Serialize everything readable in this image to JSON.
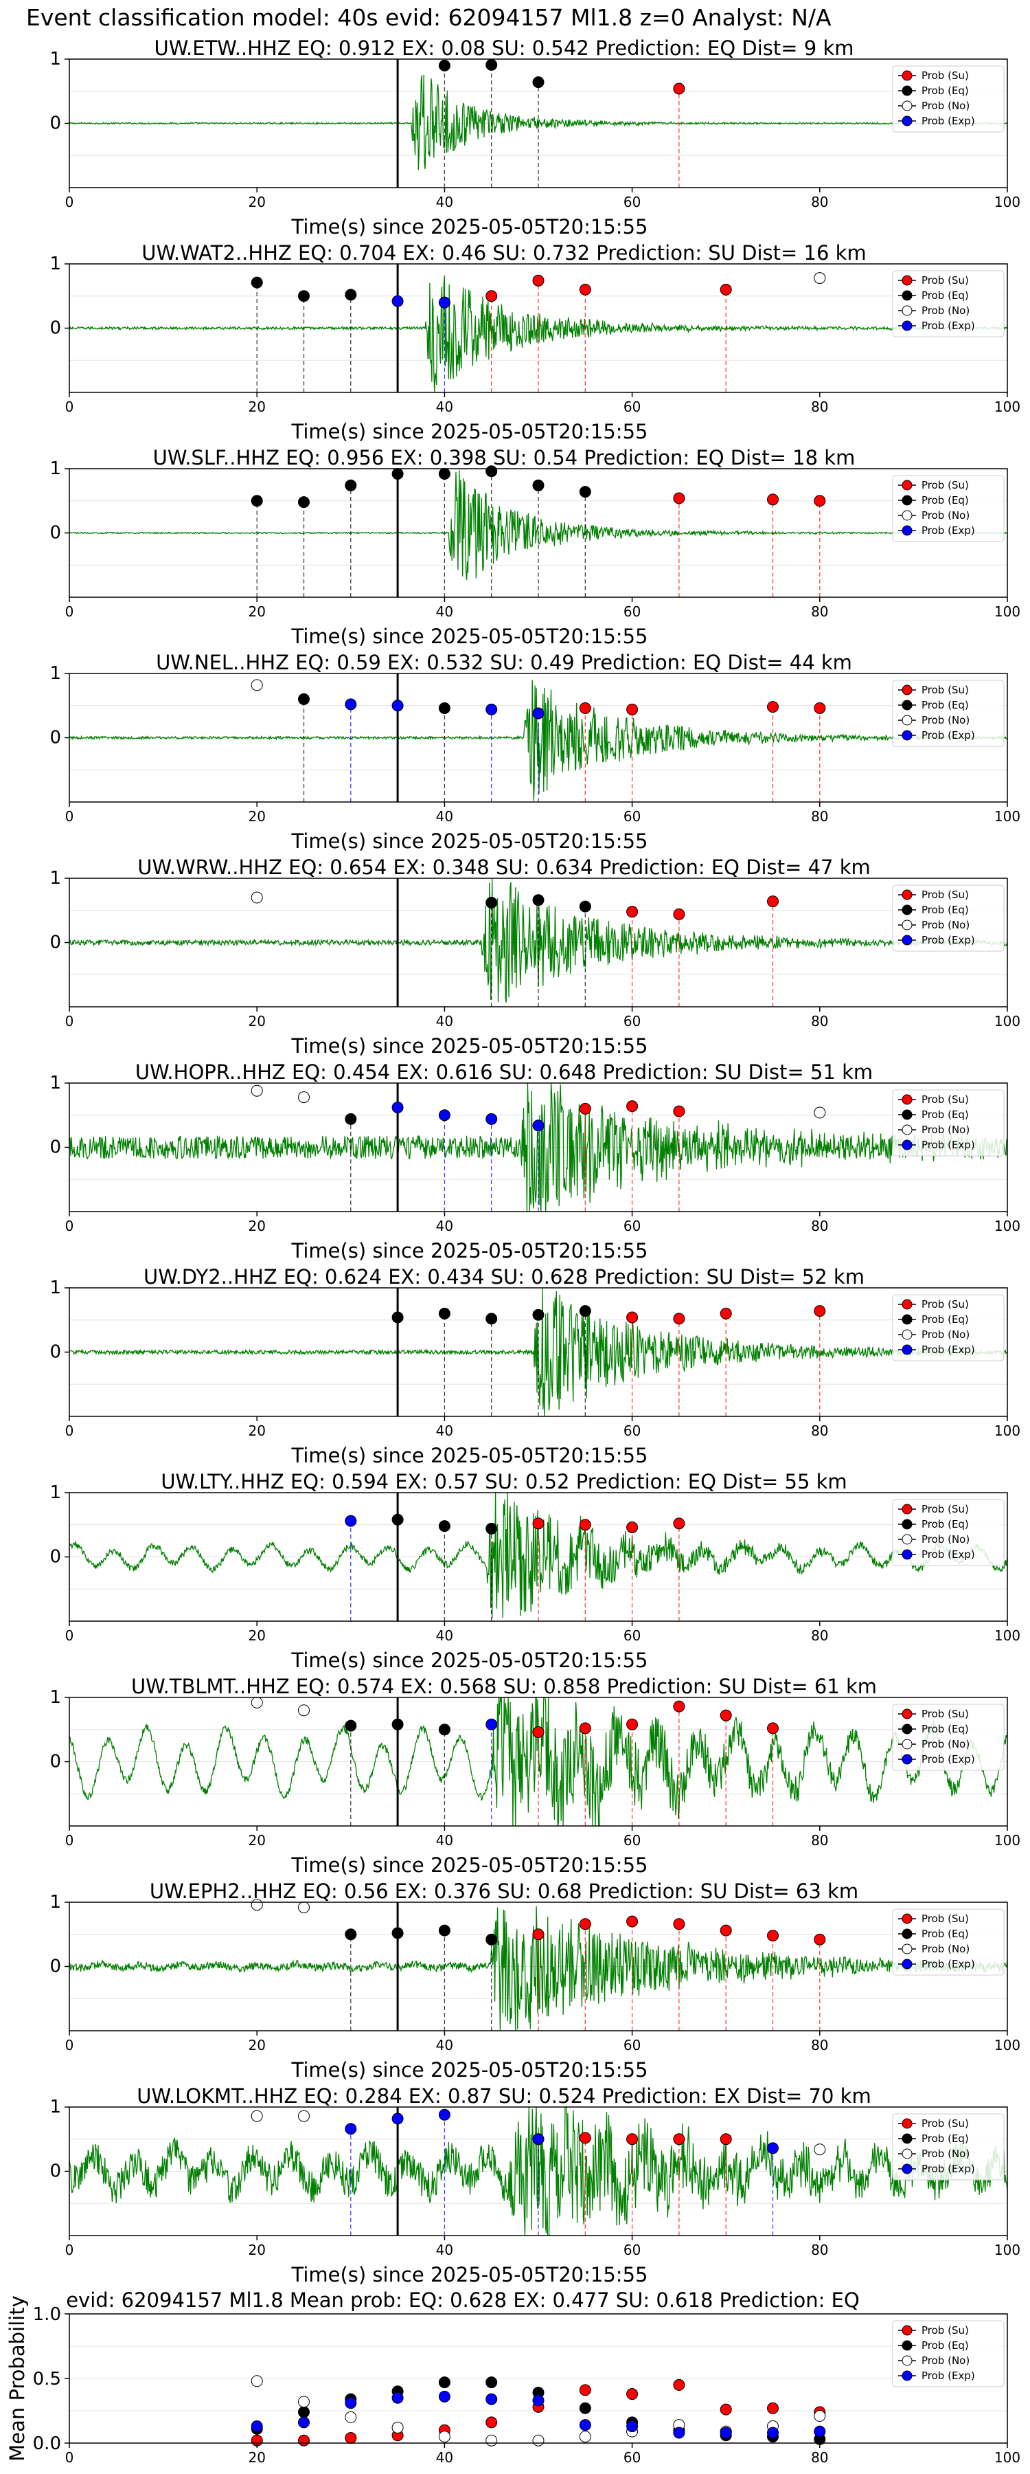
{
  "figure": {
    "suptitle": "Event classification model: 40s evid: 62094157 Ml1.8 z=0 Analyst: N/A"
  },
  "legend_labels": [
    "Prob (Su)",
    "Prob (Eq)",
    "Prob (No)",
    "Prob (Exp)"
  ],
  "colors": {
    "su": "#ff0000",
    "eq": "#000000",
    "no": "#ffffff",
    "exp": "#0000ff",
    "waveform": "#008000",
    "origin_line": "#000000"
  },
  "chart_data": [
    {
      "type": "scatter",
      "title": "UW.ETW..HHZ   EQ: 0.912  EX: 0.08  SU: 0.542   Prediction: EQ    Dist= 9 km",
      "xlabel": "Time(s) since 2025-05-05T20:15:55",
      "xlim": [
        0,
        100
      ],
      "ylim": [
        -1,
        1
      ],
      "xticks": [
        "0",
        "20",
        "40",
        "60",
        "80",
        "100"
      ],
      "yticks": [
        "1",
        "0"
      ],
      "origin_time": 35,
      "waveform": {
        "onset": 36.5,
        "amp": 0.9,
        "decay": 4,
        "coda": 10,
        "noise": 0.012,
        "swell": 0
      },
      "points": [
        {
          "class": "eq",
          "x": 40,
          "y": 0.9
        },
        {
          "class": "eq",
          "x": 45,
          "y": 0.91
        },
        {
          "class": "eq",
          "x": 50,
          "y": 0.64
        },
        {
          "class": "su",
          "x": 65,
          "y": 0.54
        }
      ]
    },
    {
      "type": "scatter",
      "title": "UW.WAT2..HHZ   EQ: 0.704  EX: 0.46  SU: 0.732   Prediction: SU    Dist= 16 km",
      "xlabel": "Time(s) since 2025-05-05T20:15:55",
      "xlim": [
        0,
        100
      ],
      "ylim": [
        -1,
        1
      ],
      "xticks": [
        "0",
        "20",
        "40",
        "60",
        "80",
        "100"
      ],
      "yticks": [
        "1",
        "0"
      ],
      "origin_time": 35,
      "waveform": {
        "onset": 38,
        "amp": 1.0,
        "decay": 6,
        "coda": 14,
        "noise": 0.02,
        "swell": 0
      },
      "points": [
        {
          "class": "eq",
          "x": 20,
          "y": 0.71
        },
        {
          "class": "eq",
          "x": 25,
          "y": 0.5
        },
        {
          "class": "eq",
          "x": 30,
          "y": 0.52
        },
        {
          "class": "exp",
          "x": 35,
          "y": 0.42
        },
        {
          "class": "exp",
          "x": 40,
          "y": 0.4
        },
        {
          "class": "su",
          "x": 45,
          "y": 0.5
        },
        {
          "class": "su",
          "x": 50,
          "y": 0.74
        },
        {
          "class": "su",
          "x": 55,
          "y": 0.6
        },
        {
          "class": "su",
          "x": 70,
          "y": 0.6
        },
        {
          "class": "no",
          "x": 80,
          "y": 0.78
        }
      ]
    },
    {
      "type": "scatter",
      "title": "UW.SLF..HHZ   EQ: 0.956  EX: 0.398  SU: 0.54   Prediction: EQ    Dist= 18 km",
      "xlabel": "Time(s) since 2025-05-05T20:15:55",
      "xlim": [
        0,
        100
      ],
      "ylim": [
        -1,
        1
      ],
      "xticks": [
        "0",
        "20",
        "40",
        "60",
        "80",
        "100"
      ],
      "yticks": [
        "1",
        "0"
      ],
      "origin_time": 35,
      "waveform": {
        "onset": 40.5,
        "amp": 1.0,
        "decay": 5,
        "coda": 12,
        "noise": 0.01,
        "swell": 0
      },
      "points": [
        {
          "class": "eq",
          "x": 20,
          "y": 0.5
        },
        {
          "class": "eq",
          "x": 25,
          "y": 0.48
        },
        {
          "class": "eq",
          "x": 30,
          "y": 0.74
        },
        {
          "class": "eq",
          "x": 35,
          "y": 0.92
        },
        {
          "class": "eq",
          "x": 40,
          "y": 0.92
        },
        {
          "class": "eq",
          "x": 45,
          "y": 0.96
        },
        {
          "class": "eq",
          "x": 50,
          "y": 0.74
        },
        {
          "class": "eq",
          "x": 55,
          "y": 0.64
        },
        {
          "class": "su",
          "x": 65,
          "y": 0.54
        },
        {
          "class": "su",
          "x": 75,
          "y": 0.52
        },
        {
          "class": "su",
          "x": 80,
          "y": 0.5
        }
      ]
    },
    {
      "type": "scatter",
      "title": "UW.NEL..HHZ   EQ: 0.59  EX: 0.532  SU: 0.49   Prediction: EQ    Dist= 44 km",
      "xlabel": "Time(s) since 2025-05-05T20:15:55",
      "xlim": [
        0,
        100
      ],
      "ylim": [
        -1,
        1
      ],
      "xticks": [
        "0",
        "20",
        "40",
        "60",
        "80",
        "100"
      ],
      "yticks": [
        "1",
        "0"
      ],
      "origin_time": 35,
      "waveform": {
        "onset": 48.5,
        "amp": 0.9,
        "decay": 8,
        "coda": 16,
        "noise": 0.02,
        "swell": 0
      },
      "points": [
        {
          "class": "no",
          "x": 20,
          "y": 0.82
        },
        {
          "class": "eq",
          "x": 25,
          "y": 0.6
        },
        {
          "class": "exp",
          "x": 30,
          "y": 0.52
        },
        {
          "class": "exp",
          "x": 35,
          "y": 0.5
        },
        {
          "class": "eq",
          "x": 40,
          "y": 0.46
        },
        {
          "class": "exp",
          "x": 45,
          "y": 0.44
        },
        {
          "class": "exp",
          "x": 50,
          "y": 0.38
        },
        {
          "class": "su",
          "x": 55,
          "y": 0.46
        },
        {
          "class": "su",
          "x": 60,
          "y": 0.44
        },
        {
          "class": "su",
          "x": 75,
          "y": 0.48
        },
        {
          "class": "su",
          "x": 80,
          "y": 0.46
        }
      ]
    },
    {
      "type": "scatter",
      "title": "UW.WRW..HHZ   EQ: 0.654  EX: 0.348  SU: 0.634   Prediction: EQ    Dist= 47 km",
      "xlabel": "Time(s) since 2025-05-05T20:15:55",
      "xlim": [
        0,
        100
      ],
      "ylim": [
        -1,
        1
      ],
      "xticks": [
        "0",
        "20",
        "40",
        "60",
        "80",
        "100"
      ],
      "yticks": [
        "1",
        "0"
      ],
      "origin_time": 35,
      "waveform": {
        "onset": 44,
        "amp": 1.0,
        "decay": 9,
        "coda": 18,
        "noise": 0.04,
        "swell": 0
      },
      "points": [
        {
          "class": "no",
          "x": 20,
          "y": 0.7
        },
        {
          "class": "eq",
          "x": 45,
          "y": 0.62
        },
        {
          "class": "eq",
          "x": 50,
          "y": 0.66
        },
        {
          "class": "eq",
          "x": 55,
          "y": 0.56
        },
        {
          "class": "su",
          "x": 60,
          "y": 0.48
        },
        {
          "class": "su",
          "x": 65,
          "y": 0.44
        },
        {
          "class": "su",
          "x": 75,
          "y": 0.64
        }
      ]
    },
    {
      "type": "scatter",
      "title": "UW.HOPR..HHZ   EQ: 0.454  EX: 0.616  SU: 0.648   Prediction: SU    Dist= 51 km",
      "xlabel": "Time(s) since 2025-05-05T20:15:55",
      "xlim": [
        0,
        100
      ],
      "ylim": [
        -1,
        1
      ],
      "xticks": [
        "0",
        "20",
        "40",
        "60",
        "80",
        "100"
      ],
      "yticks": [
        "1",
        "0"
      ],
      "origin_time": 35,
      "waveform": {
        "onset": 48,
        "amp": 1.0,
        "decay": 12,
        "coda": 20,
        "noise": 0.18,
        "swell": 0
      },
      "points": [
        {
          "class": "no",
          "x": 20,
          "y": 0.88
        },
        {
          "class": "no",
          "x": 25,
          "y": 0.78
        },
        {
          "class": "eq",
          "x": 30,
          "y": 0.44
        },
        {
          "class": "exp",
          "x": 35,
          "y": 0.62
        },
        {
          "class": "exp",
          "x": 40,
          "y": 0.5
        },
        {
          "class": "exp",
          "x": 45,
          "y": 0.44
        },
        {
          "class": "exp",
          "x": 50,
          "y": 0.34
        },
        {
          "class": "su",
          "x": 55,
          "y": 0.6
        },
        {
          "class": "su",
          "x": 60,
          "y": 0.64
        },
        {
          "class": "su",
          "x": 65,
          "y": 0.56
        },
        {
          "class": "no",
          "x": 80,
          "y": 0.54
        }
      ]
    },
    {
      "type": "scatter",
      "title": "UW.DY2..HHZ   EQ: 0.624  EX: 0.434  SU: 0.628   Prediction: SU    Dist= 52 km",
      "xlabel": "Time(s) since 2025-05-05T20:15:55",
      "xlim": [
        0,
        100
      ],
      "ylim": [
        -1,
        1
      ],
      "xticks": [
        "0",
        "20",
        "40",
        "60",
        "80",
        "100"
      ],
      "yticks": [
        "1",
        "0"
      ],
      "origin_time": 35,
      "waveform": {
        "onset": 49.5,
        "amp": 0.95,
        "decay": 10,
        "coda": 18,
        "noise": 0.03,
        "swell": 0
      },
      "points": [
        {
          "class": "eq",
          "x": 35,
          "y": 0.54
        },
        {
          "class": "eq",
          "x": 40,
          "y": 0.6
        },
        {
          "class": "eq",
          "x": 45,
          "y": 0.52
        },
        {
          "class": "eq",
          "x": 50,
          "y": 0.58
        },
        {
          "class": "eq",
          "x": 55,
          "y": 0.64
        },
        {
          "class": "su",
          "x": 60,
          "y": 0.54
        },
        {
          "class": "su",
          "x": 65,
          "y": 0.52
        },
        {
          "class": "su",
          "x": 70,
          "y": 0.6
        },
        {
          "class": "su",
          "x": 80,
          "y": 0.64
        }
      ]
    },
    {
      "type": "scatter",
      "title": "UW.LTY..HHZ   EQ: 0.594  EX: 0.57  SU: 0.52   Prediction: EQ    Dist= 55 km",
      "xlabel": "Time(s) since 2025-05-05T20:15:55",
      "xlim": [
        0,
        100
      ],
      "ylim": [
        -1,
        1
      ],
      "xticks": [
        "0",
        "20",
        "40",
        "60",
        "80",
        "100"
      ],
      "yticks": [
        "1",
        "0"
      ],
      "origin_time": 35,
      "waveform": {
        "onset": 44.5,
        "amp": 1.0,
        "decay": 9,
        "coda": 18,
        "noise": 0.05,
        "swell": 0.18
      },
      "points": [
        {
          "class": "exp",
          "x": 30,
          "y": 0.56
        },
        {
          "class": "eq",
          "x": 35,
          "y": 0.58
        },
        {
          "class": "eq",
          "x": 40,
          "y": 0.48
        },
        {
          "class": "eq",
          "x": 45,
          "y": 0.44
        },
        {
          "class": "su",
          "x": 50,
          "y": 0.52
        },
        {
          "class": "su",
          "x": 55,
          "y": 0.5
        },
        {
          "class": "su",
          "x": 60,
          "y": 0.46
        },
        {
          "class": "su",
          "x": 65,
          "y": 0.52
        }
      ]
    },
    {
      "type": "scatter",
      "title": "UW.TBLMT..HHZ   EQ: 0.574  EX: 0.568  SU: 0.858   Prediction: SU    Dist= 61 km",
      "xlabel": "Time(s) since 2025-05-05T20:15:55",
      "xlim": [
        0,
        100
      ],
      "ylim": [
        -1,
        1
      ],
      "xticks": [
        "0",
        "20",
        "40",
        "60",
        "80",
        "100"
      ],
      "yticks": [
        "1",
        "0"
      ],
      "origin_time": 35,
      "waveform": {
        "onset": 45,
        "amp": 1.0,
        "decay": 16,
        "coda": 22,
        "noise": 0.06,
        "swell": 0.5
      },
      "points": [
        {
          "class": "no",
          "x": 20,
          "y": 0.92
        },
        {
          "class": "no",
          "x": 25,
          "y": 0.8
        },
        {
          "class": "eq",
          "x": 30,
          "y": 0.56
        },
        {
          "class": "eq",
          "x": 35,
          "y": 0.58
        },
        {
          "class": "eq",
          "x": 40,
          "y": 0.5
        },
        {
          "class": "exp",
          "x": 45,
          "y": 0.58
        },
        {
          "class": "su",
          "x": 50,
          "y": 0.46
        },
        {
          "class": "su",
          "x": 55,
          "y": 0.52
        },
        {
          "class": "su",
          "x": 60,
          "y": 0.58
        },
        {
          "class": "su",
          "x": 65,
          "y": 0.86
        },
        {
          "class": "su",
          "x": 70,
          "y": 0.72
        },
        {
          "class": "su",
          "x": 75,
          "y": 0.52
        }
      ]
    },
    {
      "type": "scatter",
      "title": "UW.EPH2..HHZ   EQ: 0.56  EX: 0.376  SU: 0.68   Prediction: SU    Dist= 63 km",
      "xlabel": "Time(s) since 2025-05-05T20:15:55",
      "xlim": [
        0,
        100
      ],
      "ylim": [
        -1,
        1
      ],
      "xticks": [
        "0",
        "20",
        "40",
        "60",
        "80",
        "100"
      ],
      "yticks": [
        "1",
        "0"
      ],
      "origin_time": 35,
      "waveform": {
        "onset": 45,
        "amp": 1.0,
        "decay": 14,
        "coda": 22,
        "noise": 0.06,
        "swell": 0.03
      },
      "points": [
        {
          "class": "no",
          "x": 20,
          "y": 0.96
        },
        {
          "class": "no",
          "x": 25,
          "y": 0.92
        },
        {
          "class": "eq",
          "x": 30,
          "y": 0.5
        },
        {
          "class": "eq",
          "x": 35,
          "y": 0.52
        },
        {
          "class": "eq",
          "x": 40,
          "y": 0.56
        },
        {
          "class": "eq",
          "x": 45,
          "y": 0.42
        },
        {
          "class": "su",
          "x": 50,
          "y": 0.5
        },
        {
          "class": "su",
          "x": 55,
          "y": 0.66
        },
        {
          "class": "su",
          "x": 60,
          "y": 0.7
        },
        {
          "class": "su",
          "x": 65,
          "y": 0.66
        },
        {
          "class": "su",
          "x": 70,
          "y": 0.56
        },
        {
          "class": "su",
          "x": 75,
          "y": 0.48
        },
        {
          "class": "su",
          "x": 80,
          "y": 0.42
        }
      ]
    },
    {
      "type": "scatter",
      "title": "UW.LOKMT..HHZ   EQ: 0.284  EX: 0.87  SU: 0.524   Prediction: EX    Dist= 70 km",
      "xlabel": "Time(s) since 2025-05-05T20:15:55",
      "xlim": [
        0,
        100
      ],
      "ylim": [
        -1,
        1
      ],
      "xticks": [
        "0",
        "20",
        "40",
        "60",
        "80",
        "100"
      ],
      "yticks": [
        "1",
        "0"
      ],
      "origin_time": 35,
      "waveform": {
        "onset": 47,
        "amp": 1.0,
        "decay": 14,
        "coda": 22,
        "noise": 0.25,
        "swell": 0.25
      },
      "points": [
        {
          "class": "no",
          "x": 20,
          "y": 0.86
        },
        {
          "class": "no",
          "x": 25,
          "y": 0.86
        },
        {
          "class": "exp",
          "x": 30,
          "y": 0.66
        },
        {
          "class": "exp",
          "x": 35,
          "y": 0.82
        },
        {
          "class": "exp",
          "x": 40,
          "y": 0.88
        },
        {
          "class": "exp",
          "x": 50,
          "y": 0.5
        },
        {
          "class": "su",
          "x": 55,
          "y": 0.52
        },
        {
          "class": "su",
          "x": 60,
          "y": 0.5
        },
        {
          "class": "su",
          "x": 65,
          "y": 0.5
        },
        {
          "class": "su",
          "x": 70,
          "y": 0.5
        },
        {
          "class": "exp",
          "x": 75,
          "y": 0.36
        },
        {
          "class": "no",
          "x": 80,
          "y": 0.34
        }
      ]
    },
    {
      "type": "scatter",
      "title": "evid: 62094157   Ml1.8    Mean prob:    EQ: 0.628  EX: 0.477  SU: 0.618   Prediction: EQ",
      "ylabel": "Mean Probability",
      "xlim": [
        0,
        100
      ],
      "ylim": [
        0,
        1
      ],
      "xticks": [
        "0",
        "20",
        "40",
        "60",
        "80",
        "100"
      ],
      "yticks": [
        "1.0",
        "0.5",
        "0.0"
      ],
      "series": [
        {
          "name": "Prob (Su)",
          "class": "su",
          "x": [
            20,
            25,
            30,
            35,
            40,
            45,
            50,
            55,
            60,
            65,
            70,
            75,
            80
          ],
          "y": [
            0.02,
            0.02,
            0.04,
            0.06,
            0.1,
            0.16,
            0.28,
            0.41,
            0.38,
            0.45,
            0.26,
            0.27,
            0.24
          ]
        },
        {
          "name": "Prob (Eq)",
          "class": "eq",
          "x": [
            20,
            25,
            30,
            35,
            40,
            45,
            50,
            55,
            60,
            65,
            70,
            75,
            80
          ],
          "y": [
            0.11,
            0.24,
            0.34,
            0.4,
            0.47,
            0.47,
            0.39,
            0.27,
            0.16,
            0.1,
            0.06,
            0.05,
            0.03
          ]
        },
        {
          "name": "Prob (No)",
          "class": "no",
          "x": [
            20,
            25,
            30,
            35,
            40,
            45,
            50,
            55,
            60,
            65,
            70,
            75,
            80
          ],
          "y": [
            0.48,
            0.32,
            0.2,
            0.12,
            0.05,
            0.02,
            0.02,
            0.05,
            0.09,
            0.14,
            0.09,
            0.13,
            0.21
          ]
        },
        {
          "name": "Prob (Exp)",
          "class": "exp",
          "x": [
            20,
            25,
            30,
            35,
            40,
            45,
            50,
            55,
            60,
            65,
            70,
            75,
            80
          ],
          "y": [
            0.13,
            0.16,
            0.31,
            0.35,
            0.36,
            0.34,
            0.33,
            0.14,
            0.13,
            0.08,
            0.08,
            0.08,
            0.09
          ]
        }
      ]
    }
  ]
}
